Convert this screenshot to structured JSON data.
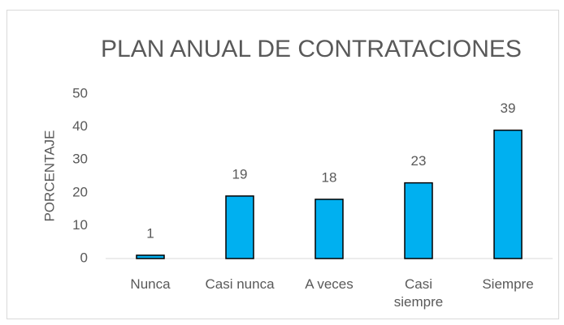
{
  "chart_data": {
    "type": "bar",
    "title": "PLAN ANUAL DE CONTRATACIONES",
    "y_label": "PORCENTAJE",
    "categories": [
      "Nunca",
      "Casi nunca",
      "A veces",
      "Casi siempre",
      "Siempre"
    ],
    "values": [
      1,
      19,
      18,
      23,
      39
    ],
    "color": "#00b0f0",
    "ylim": [
      0,
      50
    ],
    "yticks": [
      0,
      10,
      20,
      30,
      40,
      50
    ],
    "grid": false,
    "data_labels": true
  }
}
